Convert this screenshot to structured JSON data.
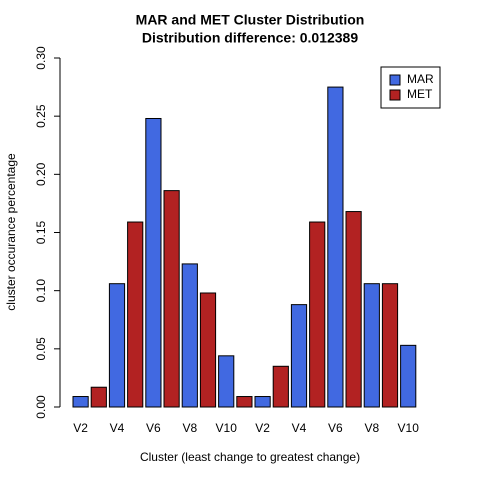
{
  "chart_data": {
    "type": "bar",
    "title": "MAR and MET Cluster Distribution",
    "subtitle": "Distribution difference: 0.012389",
    "x_label": "Cluster (least change to greatest change)",
    "y_label": "cluster occurance percentage",
    "categories": [
      "V2",
      null,
      "V4",
      null,
      "V6",
      null,
      "V8",
      null,
      "V10",
      null,
      "V2",
      null,
      "V4",
      null,
      "V6",
      null,
      "V8",
      null,
      "V10",
      null
    ],
    "series": [
      {
        "name": "MAR",
        "color": "#4169e1",
        "values": [
          0.009,
          null,
          0.106,
          null,
          0.248,
          null,
          0.123,
          null,
          0.044,
          null,
          0.009,
          null,
          0.088,
          null,
          0.275,
          null,
          0.106,
          null,
          0.053,
          null
        ]
      },
      {
        "name": "MET",
        "color": "#b22222",
        "values": [
          null,
          0.017,
          null,
          0.159,
          null,
          0.186,
          null,
          0.098,
          null,
          0.009,
          null,
          0.035,
          null,
          0.159,
          null,
          0.168,
          null,
          0.106,
          null,
          0
        ]
      }
    ],
    "ylim": [
      0,
      0.3
    ],
    "yticks": [
      {
        "value": 0,
        "label": "0.00"
      },
      0.05,
      {
        "value": 0.1,
        "label": "0.10"
      },
      0.15,
      {
        "value": 0.2,
        "label": "0.20"
      },
      0.25,
      {
        "value": 0.3,
        "label": "0.30"
      }
    ],
    "legend": "top-right"
  }
}
